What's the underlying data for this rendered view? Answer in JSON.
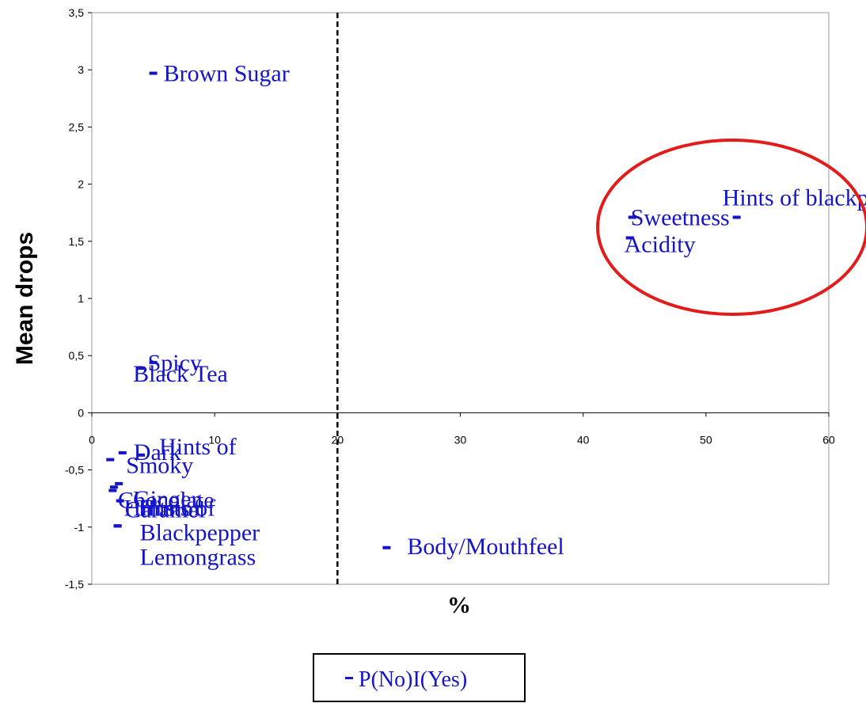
{
  "chart_data": {
    "type": "scatter",
    "xlabel": "%",
    "ylabel": "Mean drops",
    "xlim": [
      0,
      60
    ],
    "ylim": [
      -1.5,
      3.5
    ],
    "x_ticks": [
      "0",
      "10",
      "20",
      "30",
      "40",
      "50",
      "60"
    ],
    "y_ticks": [
      "-1,5",
      "-1",
      "-0,5",
      "0",
      "0,5",
      "1",
      "1,5",
      "2",
      "2,5",
      "3",
      "3,5"
    ],
    "reference_line": {
      "x": 20,
      "style": "dashed"
    },
    "highlight": {
      "shape": "ellipse",
      "color": "#e21b1b",
      "around": [
        "Sweetness",
        "Acidity",
        "Hints of blackpepper"
      ]
    },
    "legend": {
      "placement": "bottom",
      "label": "P(No)I(Yes)"
    },
    "series": [
      {
        "name": "P(No)I(Yes)",
        "color": "#1414c8",
        "points": [
          {
            "label": "Brown Sugar",
            "x": 5,
            "y": 2.97
          },
          {
            "label": "Sweetness",
            "x": 44,
            "y": 1.71
          },
          {
            "label": "Hints of blackpepper",
            "x": 52.5,
            "y": 1.71
          },
          {
            "label": "Acidity",
            "x": 43.8,
            "y": 1.53
          },
          {
            "label": "Spicy",
            "x": 5,
            "y": 0.44
          },
          {
            "label": "Black Tea",
            "x": 4,
            "y": 0.39
          },
          {
            "label": "Hints of",
            "x": 4,
            "y": -0.37
          },
          {
            "label": "Dark",
            "x": 2.5,
            "y": -0.35
          },
          {
            "label": "Smoky",
            "x": 1.5,
            "y": -0.41
          },
          {
            "label": "Ginger",
            "x": 2.2,
            "y": -0.62
          },
          {
            "label": "Chocolate",
            "x": 1.8,
            "y": -0.65
          },
          {
            "label": "Hints of",
            "x": 1.7,
            "y": -0.68
          },
          {
            "label": "Caramel",
            "x": 2.3,
            "y": -0.77
          },
          {
            "label": "Hints of",
            "x": 2.1,
            "y": -0.99
          },
          {
            "label": "Blackpepper",
            "x": 2.1,
            "y": -0.99
          },
          {
            "label": "Lemongrass",
            "x": 2.1,
            "y": -0.99
          },
          {
            "label": "Body/Mouthfeel",
            "x": 24,
            "y": -1.18
          }
        ]
      }
    ]
  }
}
